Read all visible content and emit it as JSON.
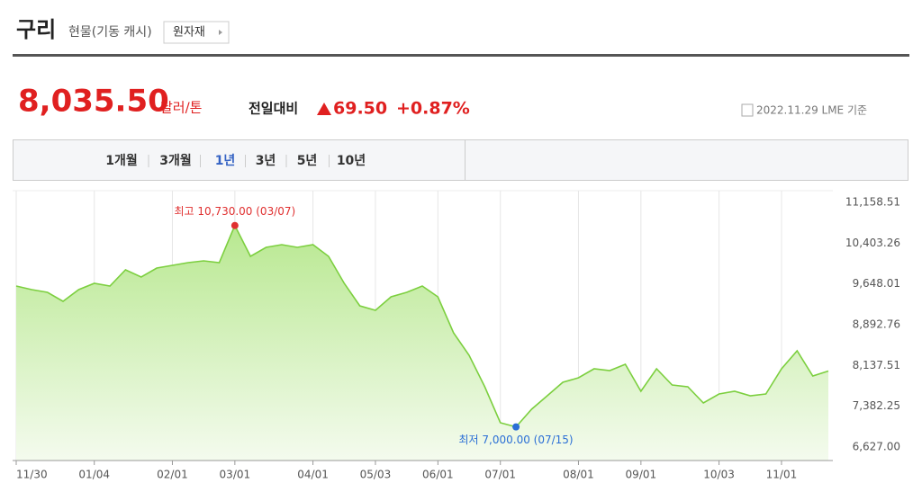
{
  "header": {
    "title": "구리",
    "subtitle": "현물(기동 캐시)",
    "button": "원자재"
  },
  "quote": {
    "price": "8,035.50",
    "unit": "달러/톤",
    "change_label": "전일대비",
    "change": "69.50",
    "change_pct": "+0.87%",
    "date": "2022.11.29 LME 기준"
  },
  "tabs": [
    "1개월",
    "3개월",
    "1년",
    "3년",
    "5년",
    "10년"
  ],
  "selected_tab": "1년",
  "chart_data": {
    "type": "line",
    "categories": [
      "11/30",
      null,
      null,
      null,
      null,
      "01/04",
      null,
      null,
      null,
      null,
      "02/01",
      null,
      null,
      null,
      "03/01",
      null,
      null,
      null,
      null,
      "04/01",
      null,
      null,
      null,
      "05/03",
      null,
      null,
      null,
      "06/01",
      null,
      null,
      null,
      "07/01",
      null,
      null,
      null,
      null,
      "08/01",
      null,
      null,
      null,
      "09/01",
      null,
      null,
      null,
      null,
      "10/03",
      null,
      null,
      null,
      "11/01",
      null,
      null,
      null
    ],
    "series": [
      {
        "name": "구리",
        "color": "#7ccf3f",
        "values": [
          9609,
          9543,
          9493,
          9326,
          9543,
          9659,
          9609,
          9909,
          9776,
          9942,
          9992,
          10042,
          10076,
          10042,
          10730,
          10159,
          10325,
          10375,
          10325,
          10375,
          10159,
          9659,
          9243,
          9159,
          9409,
          9493,
          9609,
          9409,
          8743,
          8326,
          7743,
          7077,
          7000,
          7327,
          7577,
          7826,
          7910,
          8076,
          8043,
          8160,
          7660,
          8076,
          7777,
          7743,
          7443,
          7610,
          7660,
          7577,
          7610,
          8076,
          8410,
          7943,
          8035.5
        ]
      }
    ],
    "annotations": [
      {
        "text": "최고 10,730.00 (03/07)",
        "index": 14,
        "color": "#e03030"
      },
      {
        "text": "최저 7,000.00 (07/15)",
        "index": 32,
        "color": "#2b6fd6"
      }
    ],
    "ylim": [
      6627,
      11158.51
    ],
    "yticks": [
      {
        "value": 6627,
        "label": "6,627.00"
      },
      {
        "value": 7382.25,
        "label": "7,382.25"
      },
      {
        "value": 8137.51,
        "label": "8,137.51"
      },
      {
        "value": 8892.76,
        "label": "8,892.76"
      },
      {
        "value": 9648.01,
        "label": "9,648.01"
      },
      {
        "value": 10403.26,
        "label": "10,403.26"
      },
      {
        "value": 11158.51,
        "label": "11,158.51"
      }
    ],
    "grid": true
  }
}
